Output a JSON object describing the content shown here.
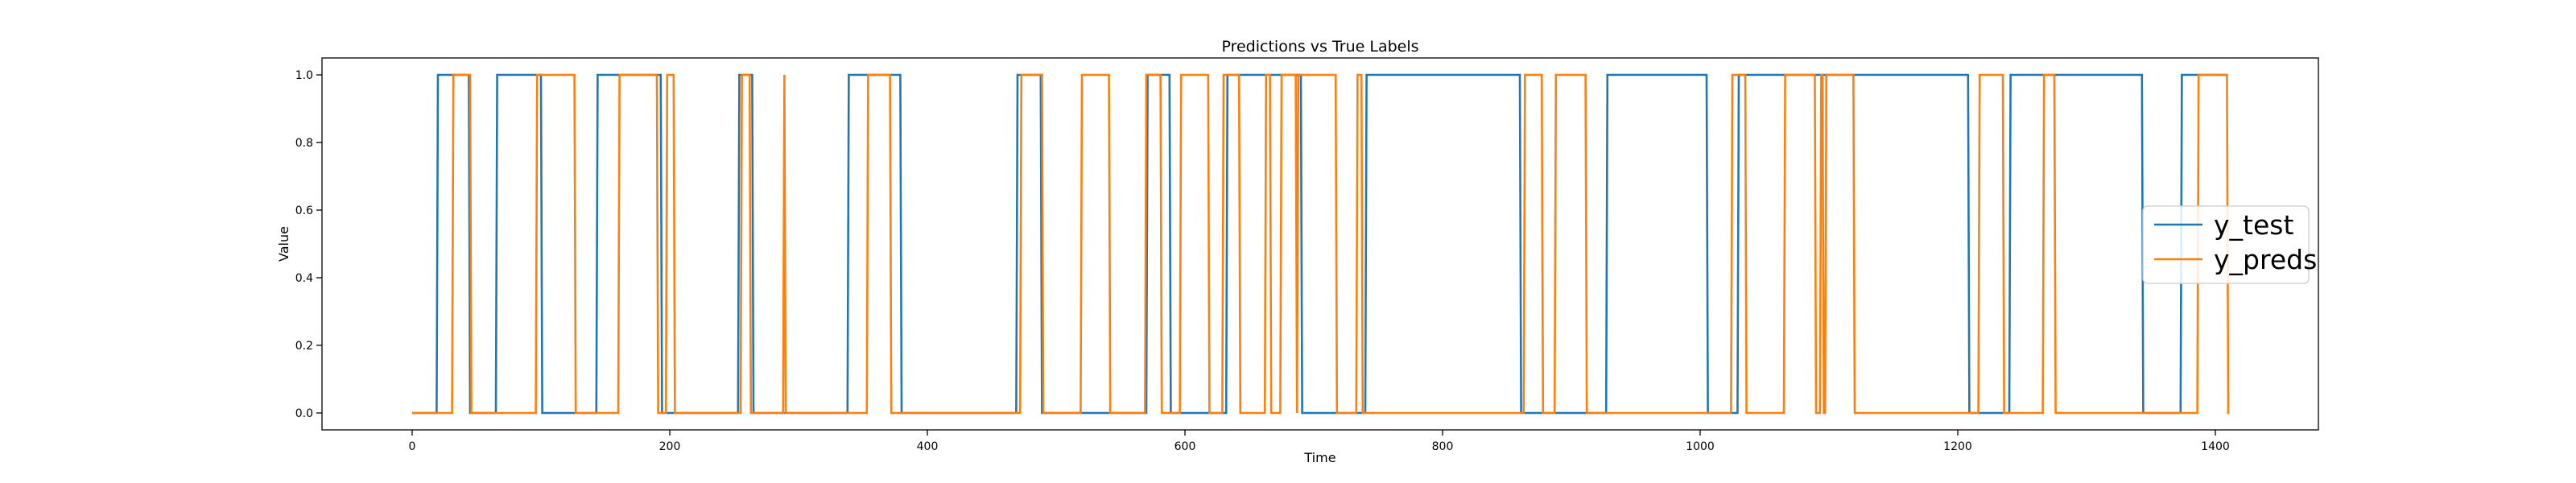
{
  "chart_data": {
    "type": "line",
    "title": "Predictions vs True Labels",
    "xlabel": "Time",
    "ylabel": "Value",
    "xlim": [
      -70,
      1480
    ],
    "ylim": [
      -0.05,
      1.05
    ],
    "xticks": [
      0,
      200,
      400,
      600,
      800,
      1000,
      1200,
      1400
    ],
    "yticks": [
      0.0,
      0.2,
      0.4,
      0.6,
      0.8,
      1.0
    ],
    "xtick_labels": [
      "0",
      "200",
      "400",
      "600",
      "800",
      "1000",
      "1200",
      "1400"
    ],
    "ytick_labels": [
      "0.0",
      "0.2",
      "0.4",
      "0.6",
      "0.8",
      "1.0"
    ],
    "grid": false,
    "legend_position": "center-right",
    "x_start": 0,
    "x_end": 1409,
    "series": [
      {
        "name": "y_test",
        "color": "#1f77b4",
        "start_value": 0,
        "toggles": [
          19,
          44,
          65,
          100,
          143,
          193,
          253,
          264,
          338,
          379,
          469,
          488,
          570,
          588,
          632,
          690,
          740,
          860,
          927,
          1005,
          1029,
          1208,
          1240,
          1343,
          1373
        ]
      },
      {
        "name": "y_preds",
        "color": "#ff7f0e",
        "start_value": 0,
        "toggles": [
          31,
          45,
          96,
          126,
          160,
          190,
          197,
          203,
          255,
          262,
          288,
          289,
          353,
          371,
          472,
          489,
          519,
          541,
          569,
          581,
          596,
          618,
          629,
          642,
          662,
          666,
          674,
          686,
          687,
          717,
          733,
          737,
          863,
          877,
          887,
          911,
          1024,
          1035,
          1065,
          1089,
          1093,
          1095,
          1097,
          1119,
          1216,
          1235,
          1266,
          1275,
          1386,
          1409
        ]
      }
    ]
  }
}
